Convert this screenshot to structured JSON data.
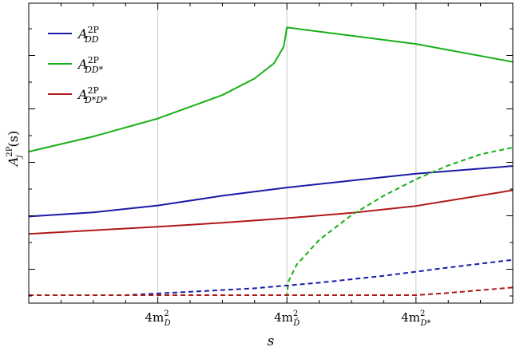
{
  "chart_data": {
    "type": "line",
    "xlabel": "s",
    "ylabel": "A_j^{2P}(s)",
    "x_ticks": [
      {
        "x": 4,
        "label_main": "4m",
        "label_sub": "D",
        "label_sup": "2"
      },
      {
        "x": 8,
        "label_main": "4m",
        "label_sub": "D̄",
        "label_sup": "2"
      },
      {
        "x": 12,
        "label_main": "4m",
        "label_sub": "D*",
        "label_sup": "2"
      }
    ],
    "xlim": [
      0,
      15
    ],
    "ylim": [
      0,
      1
    ],
    "grid_x": true,
    "legend_position": "top-left",
    "series": [
      {
        "name": "A_{DD}^{2P}",
        "legend_base": "A",
        "legend_sup": "2P",
        "legend_sub": "DD",
        "color": "#1a1aa8",
        "style": "solid",
        "points": [
          [
            0,
            0.285
          ],
          [
            2,
            0.3
          ],
          [
            4,
            0.325
          ],
          [
            6,
            0.36
          ],
          [
            8,
            0.39
          ],
          [
            10,
            0.415
          ],
          [
            12,
            0.44
          ],
          [
            15,
            0.468
          ]
        ]
      },
      {
        "name": "A_{DD*}^{2P}",
        "legend_base": "A",
        "legend_sup": "2P",
        "legend_sub": "DD*",
        "color": "#18b018",
        "style": "solid",
        "points": [
          [
            0,
            0.52
          ],
          [
            2,
            0.575
          ],
          [
            4,
            0.64
          ],
          [
            6,
            0.725
          ],
          [
            7,
            0.785
          ],
          [
            7.6,
            0.84
          ],
          [
            7.9,
            0.9
          ],
          [
            8.0,
            0.97
          ],
          [
            10,
            0.94
          ],
          [
            12,
            0.91
          ],
          [
            15,
            0.845
          ]
        ]
      },
      {
        "name": "A_{D*D*}^{2P}",
        "legend_base": "A",
        "legend_sup": "2P",
        "legend_sub": "D*D*",
        "color": "#b01818",
        "style": "solid",
        "points": [
          [
            0,
            0.222
          ],
          [
            2,
            0.235
          ],
          [
            4,
            0.248
          ],
          [
            6,
            0.262
          ],
          [
            8,
            0.279
          ],
          [
            10,
            0.298
          ],
          [
            12,
            0.323
          ],
          [
            15,
            0.38
          ]
        ]
      },
      {
        "name": "",
        "color": "#18b018",
        "style": "dashed",
        "points": [
          [
            0,
            0
          ],
          [
            8,
            0
          ],
          [
            8.05,
            0.05
          ],
          [
            8.3,
            0.11
          ],
          [
            9,
            0.2
          ],
          [
            10,
            0.29
          ],
          [
            11,
            0.36
          ],
          [
            12,
            0.42
          ],
          [
            13,
            0.47
          ],
          [
            14,
            0.51
          ],
          [
            15,
            0.535
          ]
        ]
      },
      {
        "name": "",
        "color": "#1a1aa8",
        "style": "dashed",
        "points": [
          [
            0,
            0
          ],
          [
            3,
            0
          ],
          [
            5,
            0.012
          ],
          [
            7,
            0.025
          ],
          [
            9,
            0.045
          ],
          [
            11,
            0.07
          ],
          [
            13,
            0.1
          ],
          [
            15,
            0.128
          ]
        ]
      },
      {
        "name": "",
        "color": "#b01818",
        "style": "dashed",
        "points": [
          [
            0,
            0
          ],
          [
            12,
            0
          ],
          [
            13,
            0.008
          ],
          [
            14,
            0.018
          ],
          [
            15,
            0.028
          ]
        ]
      }
    ]
  }
}
